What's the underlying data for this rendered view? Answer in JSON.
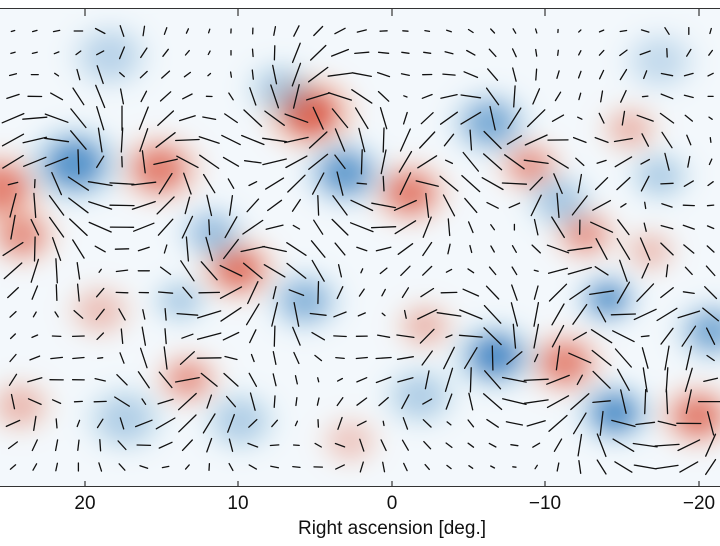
{
  "chart_data": {
    "type": "heatmap",
    "title": "",
    "xlabel": "Right ascension [deg.]",
    "ylabel": "",
    "xlim": [
      25.5,
      -21.5
    ],
    "x_ticks": [
      {
        "value": 20,
        "label": "20",
        "px": 85
      },
      {
        "value": 10,
        "label": "10",
        "px": 238
      },
      {
        "value": 0,
        "label": "0",
        "px": 392
      },
      {
        "value": -10,
        "label": "−10",
        "px": 545
      },
      {
        "value": -20,
        "label": "−20",
        "px": 699
      }
    ],
    "colormap": {
      "negative": "#1f6fb8",
      "neutral": "#f7fbfd",
      "positive": "#d8412b"
    },
    "description": "B-mode polarization map: red/blue temperature-like field with overlaid polarization line segments",
    "blobs": [
      {
        "x": 310,
        "y": 112,
        "r": 34,
        "amp": 1.0
      },
      {
        "x": 410,
        "y": 192,
        "r": 30,
        "amp": 0.75
      },
      {
        "x": 238,
        "y": 268,
        "r": 30,
        "amp": 0.8
      },
      {
        "x": 160,
        "y": 168,
        "r": 32,
        "amp": 0.75
      },
      {
        "x": 530,
        "y": 165,
        "r": 26,
        "amp": 0.55
      },
      {
        "x": 585,
        "y": 233,
        "r": 26,
        "amp": 0.55
      },
      {
        "x": 565,
        "y": 362,
        "r": 30,
        "amp": 0.7
      },
      {
        "x": 698,
        "y": 415,
        "r": 30,
        "amp": 0.75
      },
      {
        "x": 0,
        "y": 188,
        "r": 34,
        "amp": 0.75
      },
      {
        "x": 22,
        "y": 235,
        "r": 28,
        "amp": 0.6
      },
      {
        "x": 188,
        "y": 378,
        "r": 26,
        "amp": 0.55
      },
      {
        "x": 425,
        "y": 325,
        "r": 24,
        "amp": 0.35
      },
      {
        "x": 630,
        "y": 128,
        "r": 24,
        "amp": 0.35
      },
      {
        "x": 100,
        "y": 310,
        "r": 26,
        "amp": 0.3
      },
      {
        "x": 20,
        "y": 405,
        "r": 26,
        "amp": 0.35
      },
      {
        "x": 650,
        "y": 250,
        "r": 22,
        "amp": 0.3
      },
      {
        "x": 350,
        "y": 440,
        "r": 24,
        "amp": 0.25
      },
      {
        "x": 75,
        "y": 163,
        "r": 34,
        "amp": -0.85
      },
      {
        "x": 345,
        "y": 172,
        "r": 30,
        "amp": -0.75
      },
      {
        "x": 495,
        "y": 355,
        "r": 30,
        "amp": -0.9
      },
      {
        "x": 608,
        "y": 298,
        "r": 24,
        "amp": -0.75
      },
      {
        "x": 615,
        "y": 412,
        "r": 28,
        "amp": -0.85
      },
      {
        "x": 490,
        "y": 122,
        "r": 30,
        "amp": -0.6
      },
      {
        "x": 712,
        "y": 330,
        "r": 28,
        "amp": -0.6
      },
      {
        "x": 212,
        "y": 232,
        "r": 26,
        "amp": -0.4
      },
      {
        "x": 305,
        "y": 300,
        "r": 28,
        "amp": -0.5
      },
      {
        "x": 280,
        "y": 88,
        "r": 26,
        "amp": -0.3
      },
      {
        "x": 560,
        "y": 200,
        "r": 26,
        "amp": -0.35
      },
      {
        "x": 125,
        "y": 418,
        "r": 30,
        "amp": -0.3
      },
      {
        "x": 420,
        "y": 395,
        "r": 28,
        "amp": -0.3
      },
      {
        "x": 110,
        "y": 55,
        "r": 30,
        "amp": -0.25
      },
      {
        "x": 660,
        "y": 60,
        "r": 28,
        "amp": -0.2
      },
      {
        "x": 240,
        "y": 420,
        "r": 28,
        "amp": -0.3
      },
      {
        "x": 180,
        "y": 300,
        "r": 22,
        "amp": -0.3
      },
      {
        "x": 660,
        "y": 175,
        "r": 24,
        "amp": -0.3
      }
    ],
    "vector_grid": {
      "x0": 13,
      "y0": 30,
      "dx": 21.8,
      "dy": 21.8,
      "cols": 33,
      "rows": 21,
      "max_len": 24,
      "min_len": 2
    }
  }
}
